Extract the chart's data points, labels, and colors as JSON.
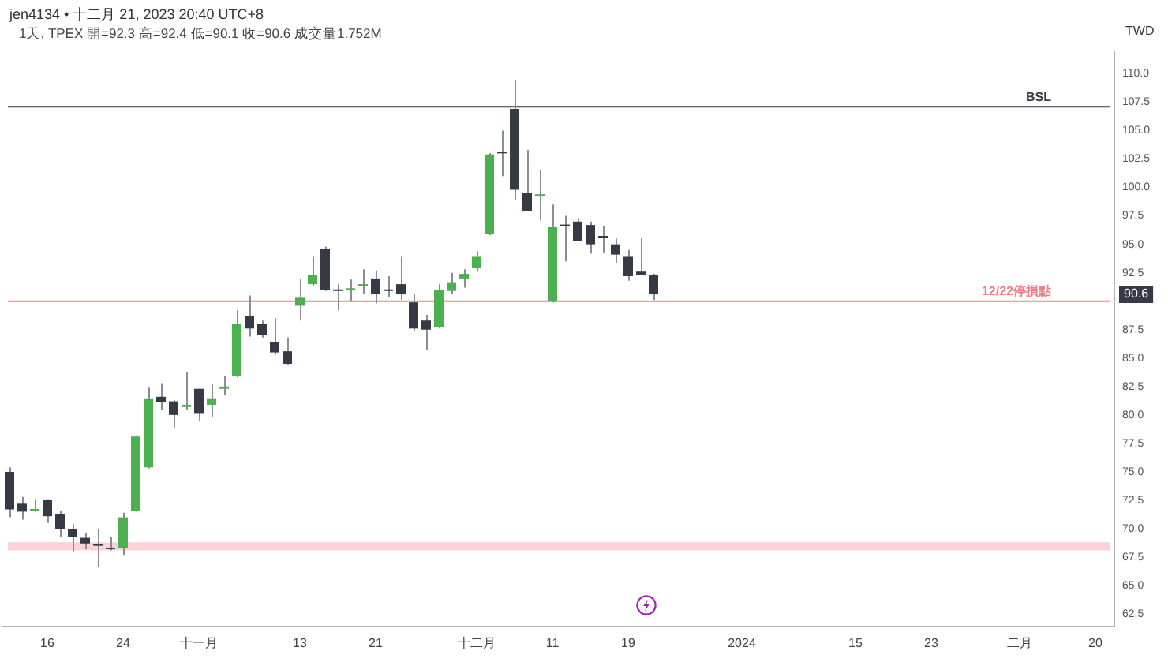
{
  "chart_data": {
    "type": "candlestick",
    "title": "jen4134 • 十二月 21, 2023 20:40 UTC+8",
    "subtitle": "1天, TPEX 開=92.3 高=92.4 低=90.1 收=90.6 成交量1.752M",
    "ylabel": "TWD",
    "categories": [
      null,
      null,
      null,
      "16",
      null,
      null,
      null,
      null,
      null,
      "24",
      null,
      null,
      null,
      null,
      null,
      "十一月",
      null,
      null,
      null,
      null,
      null,
      null,
      null,
      "13",
      null,
      null,
      null,
      null,
      null,
      "21",
      null,
      null,
      null,
      null,
      null,
      null,
      null,
      "十二月",
      null,
      null,
      null,
      null,
      null,
      "11",
      null,
      null,
      null,
      null,
      null,
      "19",
      null,
      null,
      null,
      null,
      null,
      null,
      null,
      null,
      "2024",
      null,
      null,
      null,
      null,
      null,
      null,
      null,
      null,
      "15",
      null,
      null,
      null,
      null,
      null,
      "23",
      null,
      null,
      null,
      null,
      null,
      null,
      "二月",
      null,
      null,
      null,
      null,
      null,
      "20",
      null
    ],
    "ohlc": [
      [
        75.0,
        75.4,
        71.0,
        71.7
      ],
      [
        72.2,
        72.8,
        70.8,
        71.5
      ],
      [
        71.6,
        72.6,
        71.5,
        71.7
      ],
      [
        72.5,
        72.6,
        70.5,
        71.1
      ],
      [
        71.3,
        71.6,
        69.3,
        70.0
      ],
      [
        70.0,
        70.4,
        68.0,
        69.3
      ],
      [
        69.2,
        69.6,
        68.2,
        68.7
      ],
      [
        68.6,
        70.0,
        66.6,
        68.5
      ],
      [
        68.3,
        69.3,
        68.1,
        68.2
      ],
      [
        68.3,
        71.4,
        67.7,
        71.0
      ],
      [
        71.6,
        78.2,
        71.5,
        78.1
      ],
      [
        75.4,
        82.4,
        75.3,
        81.4
      ],
      [
        81.6,
        82.8,
        80.4,
        81.1
      ],
      [
        81.2,
        81.3,
        78.9,
        80.0
      ],
      [
        80.7,
        83.8,
        80.4,
        80.9
      ],
      [
        82.3,
        82.3,
        79.5,
        80.1
      ],
      [
        80.9,
        82.7,
        79.8,
        81.4
      ],
      [
        82.3,
        83.4,
        81.8,
        82.5
      ],
      [
        83.4,
        89.2,
        83.3,
        88.0
      ],
      [
        88.7,
        90.5,
        86.9,
        87.6
      ],
      [
        88.0,
        88.3,
        86.8,
        87.0
      ],
      [
        86.4,
        88.5,
        85.3,
        85.5
      ],
      [
        85.6,
        86.8,
        84.4,
        84.5
      ],
      [
        89.6,
        92.0,
        88.3,
        90.3
      ],
      [
        91.5,
        93.9,
        91.3,
        92.3
      ],
      [
        94.6,
        94.8,
        90.9,
        91.0
      ],
      [
        91.0,
        91.5,
        89.2,
        90.9
      ],
      [
        91.0,
        91.9,
        90.0,
        91.1
      ],
      [
        91.3,
        92.8,
        90.6,
        91.5
      ],
      [
        92.0,
        92.7,
        89.8,
        90.6
      ],
      [
        90.9,
        92.2,
        90.4,
        90.9
      ],
      [
        91.5,
        93.9,
        90.1,
        90.6
      ],
      [
        89.9,
        90.6,
        87.4,
        87.6
      ],
      [
        88.3,
        88.8,
        85.7,
        87.5
      ],
      [
        87.7,
        91.5,
        87.6,
        91.0
      ],
      [
        90.9,
        92.5,
        90.6,
        91.6
      ],
      [
        92.0,
        92.8,
        91.2,
        92.4
      ],
      [
        92.9,
        94.4,
        92.6,
        93.9
      ],
      [
        95.9,
        103.0,
        95.8,
        102.9
      ],
      [
        103.1,
        105.0,
        101.0,
        103.0
      ],
      [
        106.9,
        109.4,
        98.9,
        99.8
      ],
      [
        99.5,
        103.3,
        97.9,
        97.9
      ],
      [
        99.2,
        101.5,
        97.1,
        99.4
      ],
      [
        90.0,
        98.5,
        89.9,
        96.5
      ],
      [
        96.6,
        97.5,
        93.5,
        96.6
      ],
      [
        97.0,
        97.3,
        95.3,
        95.3
      ],
      [
        96.7,
        97.0,
        94.2,
        95.0
      ],
      [
        95.6,
        96.6,
        94.3,
        95.6
      ],
      [
        95.0,
        95.5,
        93.4,
        94.1
      ],
      [
        93.9,
        94.5,
        91.8,
        92.2
      ],
      [
        92.6,
        95.6,
        92.3,
        92.3
      ],
      [
        92.3,
        92.4,
        90.1,
        90.6
      ],
      null,
      null,
      null,
      null,
      null,
      null,
      null,
      null,
      null,
      null,
      null,
      null,
      null,
      null,
      null,
      null,
      null,
      null,
      null,
      null,
      null,
      null,
      null,
      null,
      null,
      null,
      null,
      null,
      null,
      null,
      null,
      null,
      null,
      null,
      null,
      null
    ],
    "colors": [
      "#363a45",
      "#363a45",
      "#4caf50",
      "#363a45",
      "#363a45",
      "#363a45",
      "#363a45",
      "#363a45",
      "#363a45",
      "#4caf50",
      "#4caf50",
      "#4caf50",
      "#363a45",
      "#363a45",
      "#4caf50",
      "#363a45",
      "#4caf50",
      "#4caf50",
      "#4caf50",
      "#363a45",
      "#363a45",
      "#363a45",
      "#363a45",
      "#4caf50",
      "#4caf50",
      "#363a45",
      "#363a45",
      "#4caf50",
      "#4caf50",
      "#363a45",
      "#363a45",
      "#363a45",
      "#363a45",
      "#363a45",
      "#4caf50",
      "#4caf50",
      "#4caf50",
      "#4caf50",
      "#4caf50",
      "#363a45",
      "#363a45",
      "#363a45",
      "#4caf50",
      "#4caf50",
      "#363a45",
      "#363a45",
      "#363a45",
      "#363a45",
      "#363a45",
      "#363a45",
      "#363a45",
      "#363a45",
      null,
      null,
      null,
      null,
      null,
      null,
      null,
      null,
      null,
      null,
      null,
      null,
      null,
      null,
      null,
      null,
      null,
      null,
      null,
      null,
      null,
      null,
      null,
      null,
      null,
      null,
      null,
      null,
      null,
      null,
      null,
      null,
      null,
      null,
      null,
      null
    ],
    "ylim": [
      61.4,
      111.9
    ],
    "yticks": [
      {
        "value": 62.5,
        "label": "62.5"
      },
      {
        "value": 65,
        "label": "65.0"
      },
      {
        "value": 67.5,
        "label": "67.5"
      },
      {
        "value": 70,
        "label": "70.0"
      },
      {
        "value": 72.5,
        "label": "72.5"
      },
      {
        "value": 75,
        "label": "75.0"
      },
      {
        "value": 77.5,
        "label": "77.5"
      },
      {
        "value": 80,
        "label": "80.0"
      },
      {
        "value": 82.5,
        "label": "82.5"
      },
      {
        "value": 85,
        "label": "85.0"
      },
      {
        "value": 87.5,
        "label": "87.5"
      },
      {
        "value": 90,
        "label": null
      },
      {
        "value": 92.5,
        "label": "92.5"
      },
      {
        "value": 95,
        "label": "95.0"
      },
      {
        "value": 97.5,
        "label": "97.5"
      },
      {
        "value": 100,
        "label": "100.0"
      },
      {
        "value": 102.5,
        "label": "102.5"
      },
      {
        "value": 105,
        "label": "105.0"
      },
      {
        "value": 107.5,
        "label": "107.5"
      },
      {
        "value": 110,
        "label": "110.0"
      }
    ],
    "ref_lines": [
      {
        "axis": "y",
        "value": 107.1,
        "label": "BSL",
        "color": "#363a45"
      },
      {
        "axis": "y",
        "value": 90.0,
        "label": "12/22停損點",
        "color": "#f07c84"
      }
    ],
    "bands": [
      {
        "axis": "y",
        "from": 68.1,
        "to": 68.8,
        "color": "#fbd3d7"
      }
    ],
    "annotations": [
      "90.6"
    ],
    "grid": false,
    "legend": false
  }
}
